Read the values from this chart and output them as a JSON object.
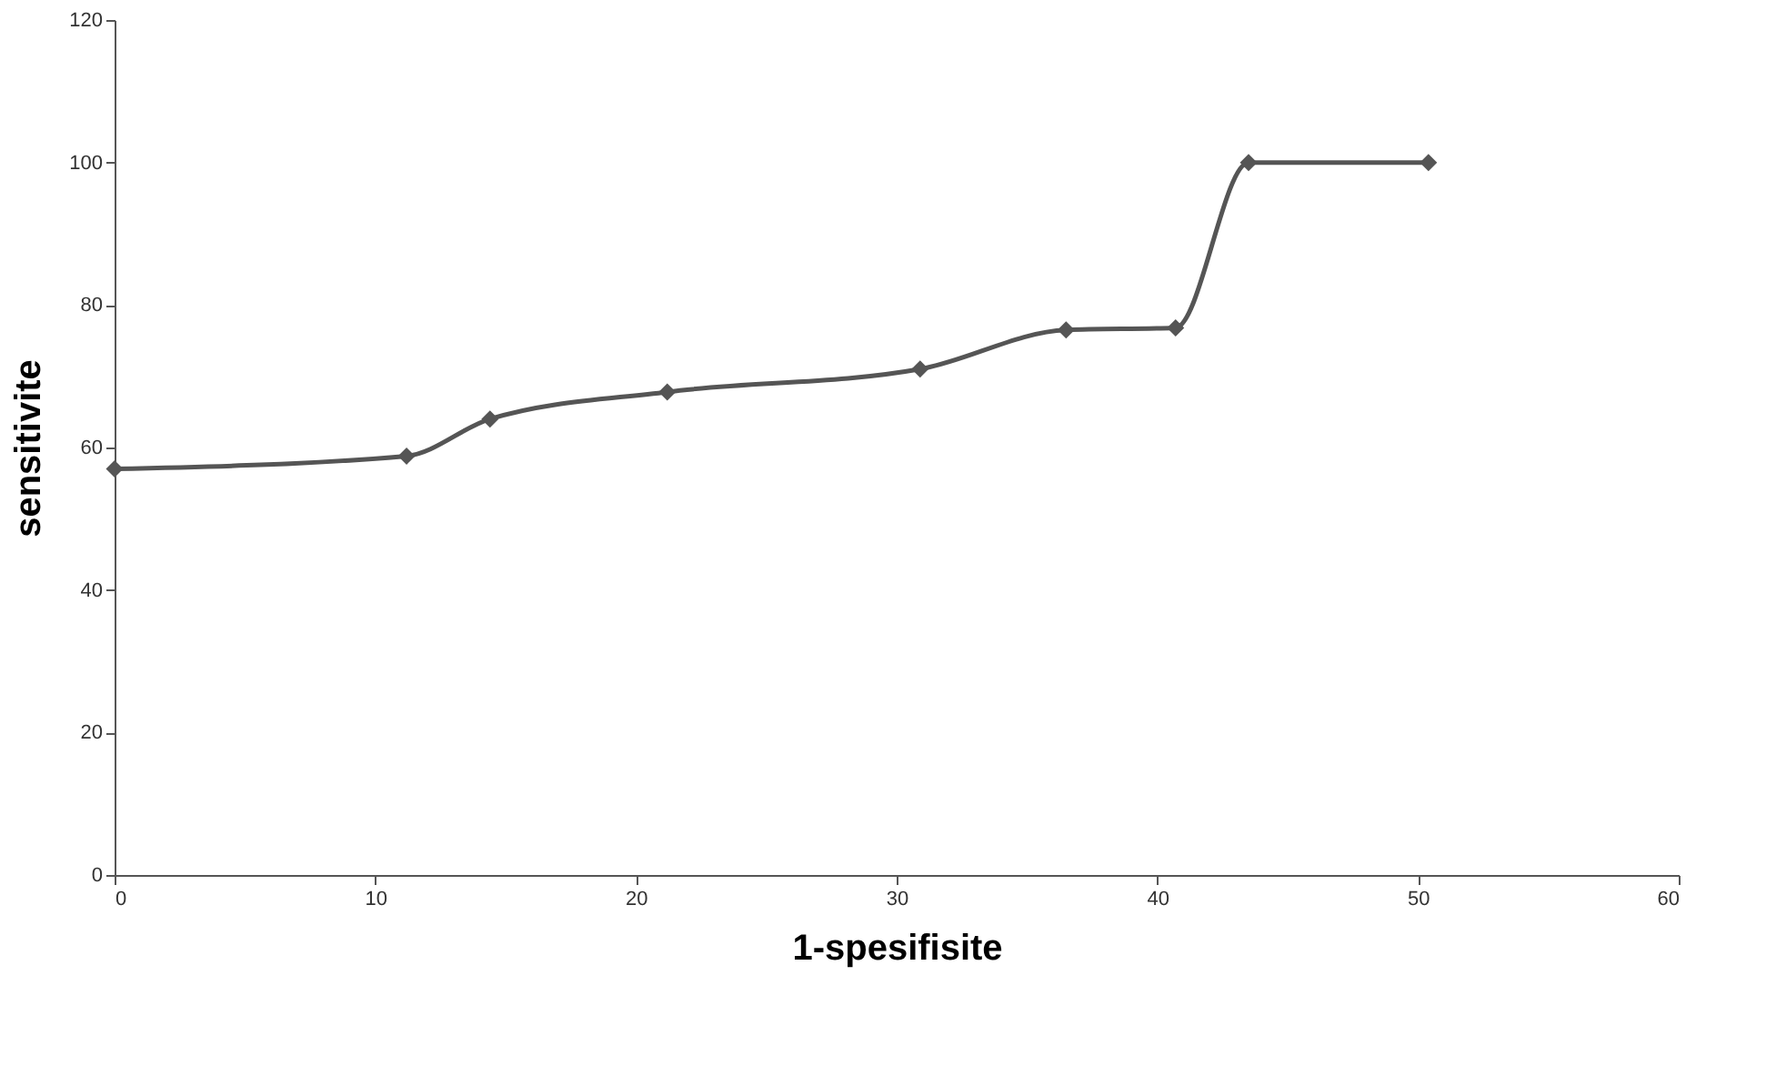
{
  "chart_data": {
    "type": "line",
    "xlabel": "1-spesifisite",
    "ylabel": "sensitivite",
    "series": [
      {
        "color": "#555555",
        "x": [
          0,
          11.2,
          14.4,
          21.2,
          30.9,
          36.5,
          40.7,
          43.5,
          50.4
        ],
        "values": [
          57,
          58.8,
          64,
          67.8,
          71,
          76.5,
          76.8,
          100,
          100
        ]
      }
    ],
    "xlim": [
      0,
      60
    ],
    "xticks": [
      0,
      10,
      20,
      30,
      40,
      50,
      60
    ],
    "ylim": [
      0,
      120
    ],
    "yticks": [
      0,
      20,
      40,
      60,
      80,
      100,
      120
    ],
    "grid": false,
    "marker": "diamond",
    "line_style": "solid"
  }
}
